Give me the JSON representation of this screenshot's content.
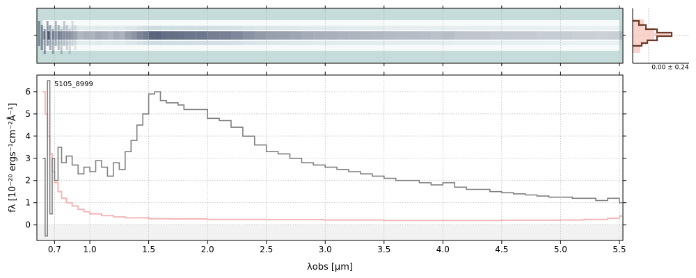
{
  "figure": {
    "object_label": "5105_8999",
    "xlabel": "λobs [μm]",
    "ylabel": "fλ [10⁻²⁰ ergs⁻¹cm⁻²Å⁻¹]",
    "colors": {
      "flux": "#7f7f7f",
      "error": "#f4b6b6",
      "twod_bg": "#c6dcdb",
      "profile": "#6b3a2a",
      "profile_fill": "#f7c9c0",
      "grid": "#b0b0b0"
    }
  },
  "chart_data": [
    {
      "type": "heatmap",
      "description": "2D spectrum cutout",
      "x_ticks": [
        0.7,
        1.0,
        1.5,
        2.0,
        2.5,
        3.0,
        3.5,
        4.0,
        4.5,
        5.0,
        5.5
      ],
      "grid": true
    },
    {
      "type": "line",
      "description": "spatial profile",
      "annotation": "0.00 ± 0.24"
    },
    {
      "type": "line",
      "xlabel": "λobs [μm]",
      "ylabel": "fλ [10⁻²⁰ ergs⁻¹cm⁻²Å⁻¹]",
      "xlim": [
        0.55,
        5.53
      ],
      "ylim": [
        -0.7,
        6.75
      ],
      "x_ticks": [
        0.7,
        1.0,
        1.5,
        2.0,
        2.5,
        3.0,
        3.5,
        4.0,
        4.5,
        5.0,
        5.5
      ],
      "x_tick_labels": [
        "0.7",
        "1.0",
        "1.5",
        "2.0",
        "2.5",
        "3.0",
        "3.5",
        "4.0",
        "4.5",
        "5.0",
        "5.5"
      ],
      "y_ticks": [
        0,
        1,
        2,
        3,
        4,
        5,
        6
      ],
      "y_tick_labels": [
        "0",
        "1",
        "2",
        "3",
        "4",
        "5",
        "6"
      ],
      "grid": true,
      "series": [
        {
          "role": "flux",
          "style": "step",
          "x": [
            0.6,
            0.62,
            0.64,
            0.66,
            0.68,
            0.7,
            0.73,
            0.76,
            0.8,
            0.85,
            0.9,
            0.95,
            1.0,
            1.05,
            1.1,
            1.15,
            1.2,
            1.25,
            1.3,
            1.35,
            1.4,
            1.45,
            1.5,
            1.55,
            1.6,
            1.65,
            1.7,
            1.75,
            1.8,
            1.9,
            2.0,
            2.1,
            2.2,
            2.3,
            2.4,
            2.5,
            2.6,
            2.7,
            2.8,
            2.9,
            3.0,
            3.1,
            3.2,
            3.3,
            3.4,
            3.5,
            3.6,
            3.7,
            3.8,
            3.9,
            4.0,
            4.1,
            4.2,
            4.3,
            4.4,
            4.5,
            4.6,
            4.7,
            4.8,
            4.9,
            5.0,
            5.1,
            5.2,
            5.3,
            5.4,
            5.5
          ],
          "y": [
            3.0,
            -0.5,
            6.5,
            0.5,
            3.0,
            2.0,
            3.5,
            2.8,
            3.1,
            2.7,
            2.3,
            2.6,
            2.4,
            2.9,
            2.6,
            2.2,
            2.8,
            2.5,
            3.3,
            3.8,
            4.5,
            5.0,
            5.9,
            6.0,
            5.6,
            5.5,
            5.5,
            5.4,
            5.2,
            5.2,
            4.8,
            4.7,
            4.4,
            4.0,
            3.6,
            3.3,
            3.2,
            3.0,
            2.8,
            2.7,
            2.6,
            2.5,
            2.4,
            2.3,
            2.2,
            2.1,
            2.0,
            2.0,
            1.9,
            1.8,
            1.9,
            1.7,
            1.6,
            1.6,
            1.5,
            1.45,
            1.4,
            1.35,
            1.3,
            1.25,
            1.25,
            1.2,
            1.2,
            1.1,
            1.2,
            1.0
          ]
        },
        {
          "role": "error",
          "style": "step",
          "x": [
            0.6,
            0.62,
            0.64,
            0.66,
            0.68,
            0.7,
            0.73,
            0.76,
            0.8,
            0.85,
            0.9,
            0.95,
            1.0,
            1.1,
            1.2,
            1.3,
            1.5,
            1.7,
            2.0,
            2.5,
            3.0,
            3.5,
            4.0,
            4.5,
            5.0,
            5.2,
            5.4,
            5.5
          ],
          "y": [
            6.0,
            5.0,
            4.0,
            3.2,
            2.4,
            1.9,
            1.5,
            1.2,
            1.0,
            0.85,
            0.7,
            0.6,
            0.5,
            0.42,
            0.36,
            0.32,
            0.28,
            0.27,
            0.25,
            0.24,
            0.22,
            0.2,
            0.2,
            0.21,
            0.22,
            0.25,
            0.3,
            0.4
          ]
        }
      ]
    }
  ]
}
